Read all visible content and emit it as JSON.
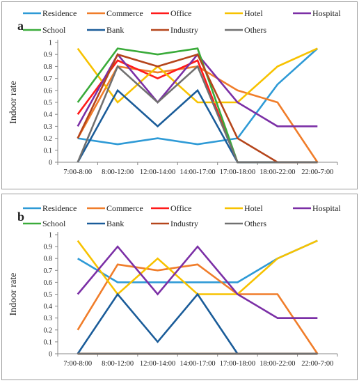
{
  "chart_data": [
    {
      "type": "line",
      "panel_label": "a",
      "ylabel": "Indoor rate",
      "xlabel": "",
      "ylim": [
        0,
        1
      ],
      "yticks": [
        "0",
        "0.1",
        "0.2",
        "0.3",
        "0.4",
        "0.5",
        "0.6",
        "0.7",
        "0.8",
        "0.9",
        "1"
      ],
      "categories": [
        "7:00-8:00",
        "8:00-12:00",
        "12:00-14:00",
        "14:00-17:00",
        "17:00-18:00",
        "18:00-22:00",
        "22:00-7:00"
      ],
      "grid": false,
      "legend_position": "top",
      "series": [
        {
          "name": "Residence",
          "color": "#2e9ad6",
          "values": [
            0.2,
            0.15,
            0.2,
            0.15,
            0.2,
            0.65,
            0.95
          ]
        },
        {
          "name": "Commerce",
          "color": "#f07d2a",
          "values": [
            0.2,
            0.8,
            0.75,
            0.8,
            0.6,
            0.5,
            0
          ]
        },
        {
          "name": "Office",
          "color": "#ff1a1a",
          "values": [
            0.4,
            0.85,
            0.7,
            0.85,
            0,
            0,
            0
          ]
        },
        {
          "name": "Hotel",
          "color": "#f7c200",
          "values": [
            0.95,
            0.5,
            0.8,
            0.5,
            0.5,
            0.8,
            0.95
          ]
        },
        {
          "name": "Hospital",
          "color": "#7b2fa6",
          "values": [
            0.3,
            0.9,
            0.5,
            0.9,
            0.5,
            0.3,
            0.3
          ]
        },
        {
          "name": "School",
          "color": "#3aab3a",
          "values": [
            0.5,
            0.95,
            0.9,
            0.95,
            0,
            0,
            0
          ]
        },
        {
          "name": "Bank",
          "color": "#1a5c99",
          "values": [
            0,
            0.6,
            0.3,
            0.6,
            0,
            0,
            0
          ]
        },
        {
          "name": "Industry",
          "color": "#b5451b",
          "values": [
            0.2,
            0.9,
            0.8,
            0.9,
            0.2,
            0,
            0
          ]
        },
        {
          "name": "Others",
          "color": "#707070",
          "values": [
            0,
            0.8,
            0.5,
            0.8,
            0,
            0,
            0
          ]
        }
      ]
    },
    {
      "type": "line",
      "panel_label": "b",
      "ylabel": "Indoor rate",
      "xlabel": "",
      "ylim": [
        0,
        1
      ],
      "yticks": [
        "0",
        "0.1",
        "0.2",
        "0.3",
        "0.4",
        "0.5",
        "0.6",
        "0.7",
        "0.8",
        "0.9",
        "1"
      ],
      "categories": [
        "7:00-8:00",
        "8:00-12:00",
        "12:00-14:00",
        "14:00-17:00",
        "17:00-18:00",
        "18:00-22:00",
        "22:00-7:00"
      ],
      "grid": false,
      "legend_position": "top",
      "series": [
        {
          "name": "Residence",
          "color": "#2e9ad6",
          "values": [
            0.8,
            0.6,
            0.6,
            0.6,
            0.6,
            0.8,
            0.95
          ]
        },
        {
          "name": "Commerce",
          "color": "#f07d2a",
          "values": [
            0.2,
            0.75,
            0.7,
            0.75,
            0.5,
            0.5,
            0
          ]
        },
        {
          "name": "Office",
          "color": "#ff1a1a",
          "values": [
            0,
            0,
            0,
            0,
            0,
            0,
            0
          ]
        },
        {
          "name": "Hotel",
          "color": "#f7c200",
          "values": [
            0.95,
            0.5,
            0.8,
            0.5,
            0.5,
            0.8,
            0.95
          ]
        },
        {
          "name": "Hospital",
          "color": "#7b2fa6",
          "values": [
            0.5,
            0.9,
            0.5,
            0.9,
            0.5,
            0.3,
            0.3
          ]
        },
        {
          "name": "School",
          "color": "#3aab3a",
          "values": [
            0,
            0,
            0,
            0,
            0,
            0,
            0
          ]
        },
        {
          "name": "Bank",
          "color": "#1a5c99",
          "values": [
            0,
            0.5,
            0.1,
            0.5,
            0,
            0,
            0
          ]
        },
        {
          "name": "Industry",
          "color": "#b5451b",
          "values": [
            0,
            0,
            0,
            0,
            0,
            0,
            0
          ]
        },
        {
          "name": "Others",
          "color": "#707070",
          "values": [
            0,
            0,
            0,
            0,
            0,
            0,
            0
          ]
        }
      ]
    }
  ]
}
